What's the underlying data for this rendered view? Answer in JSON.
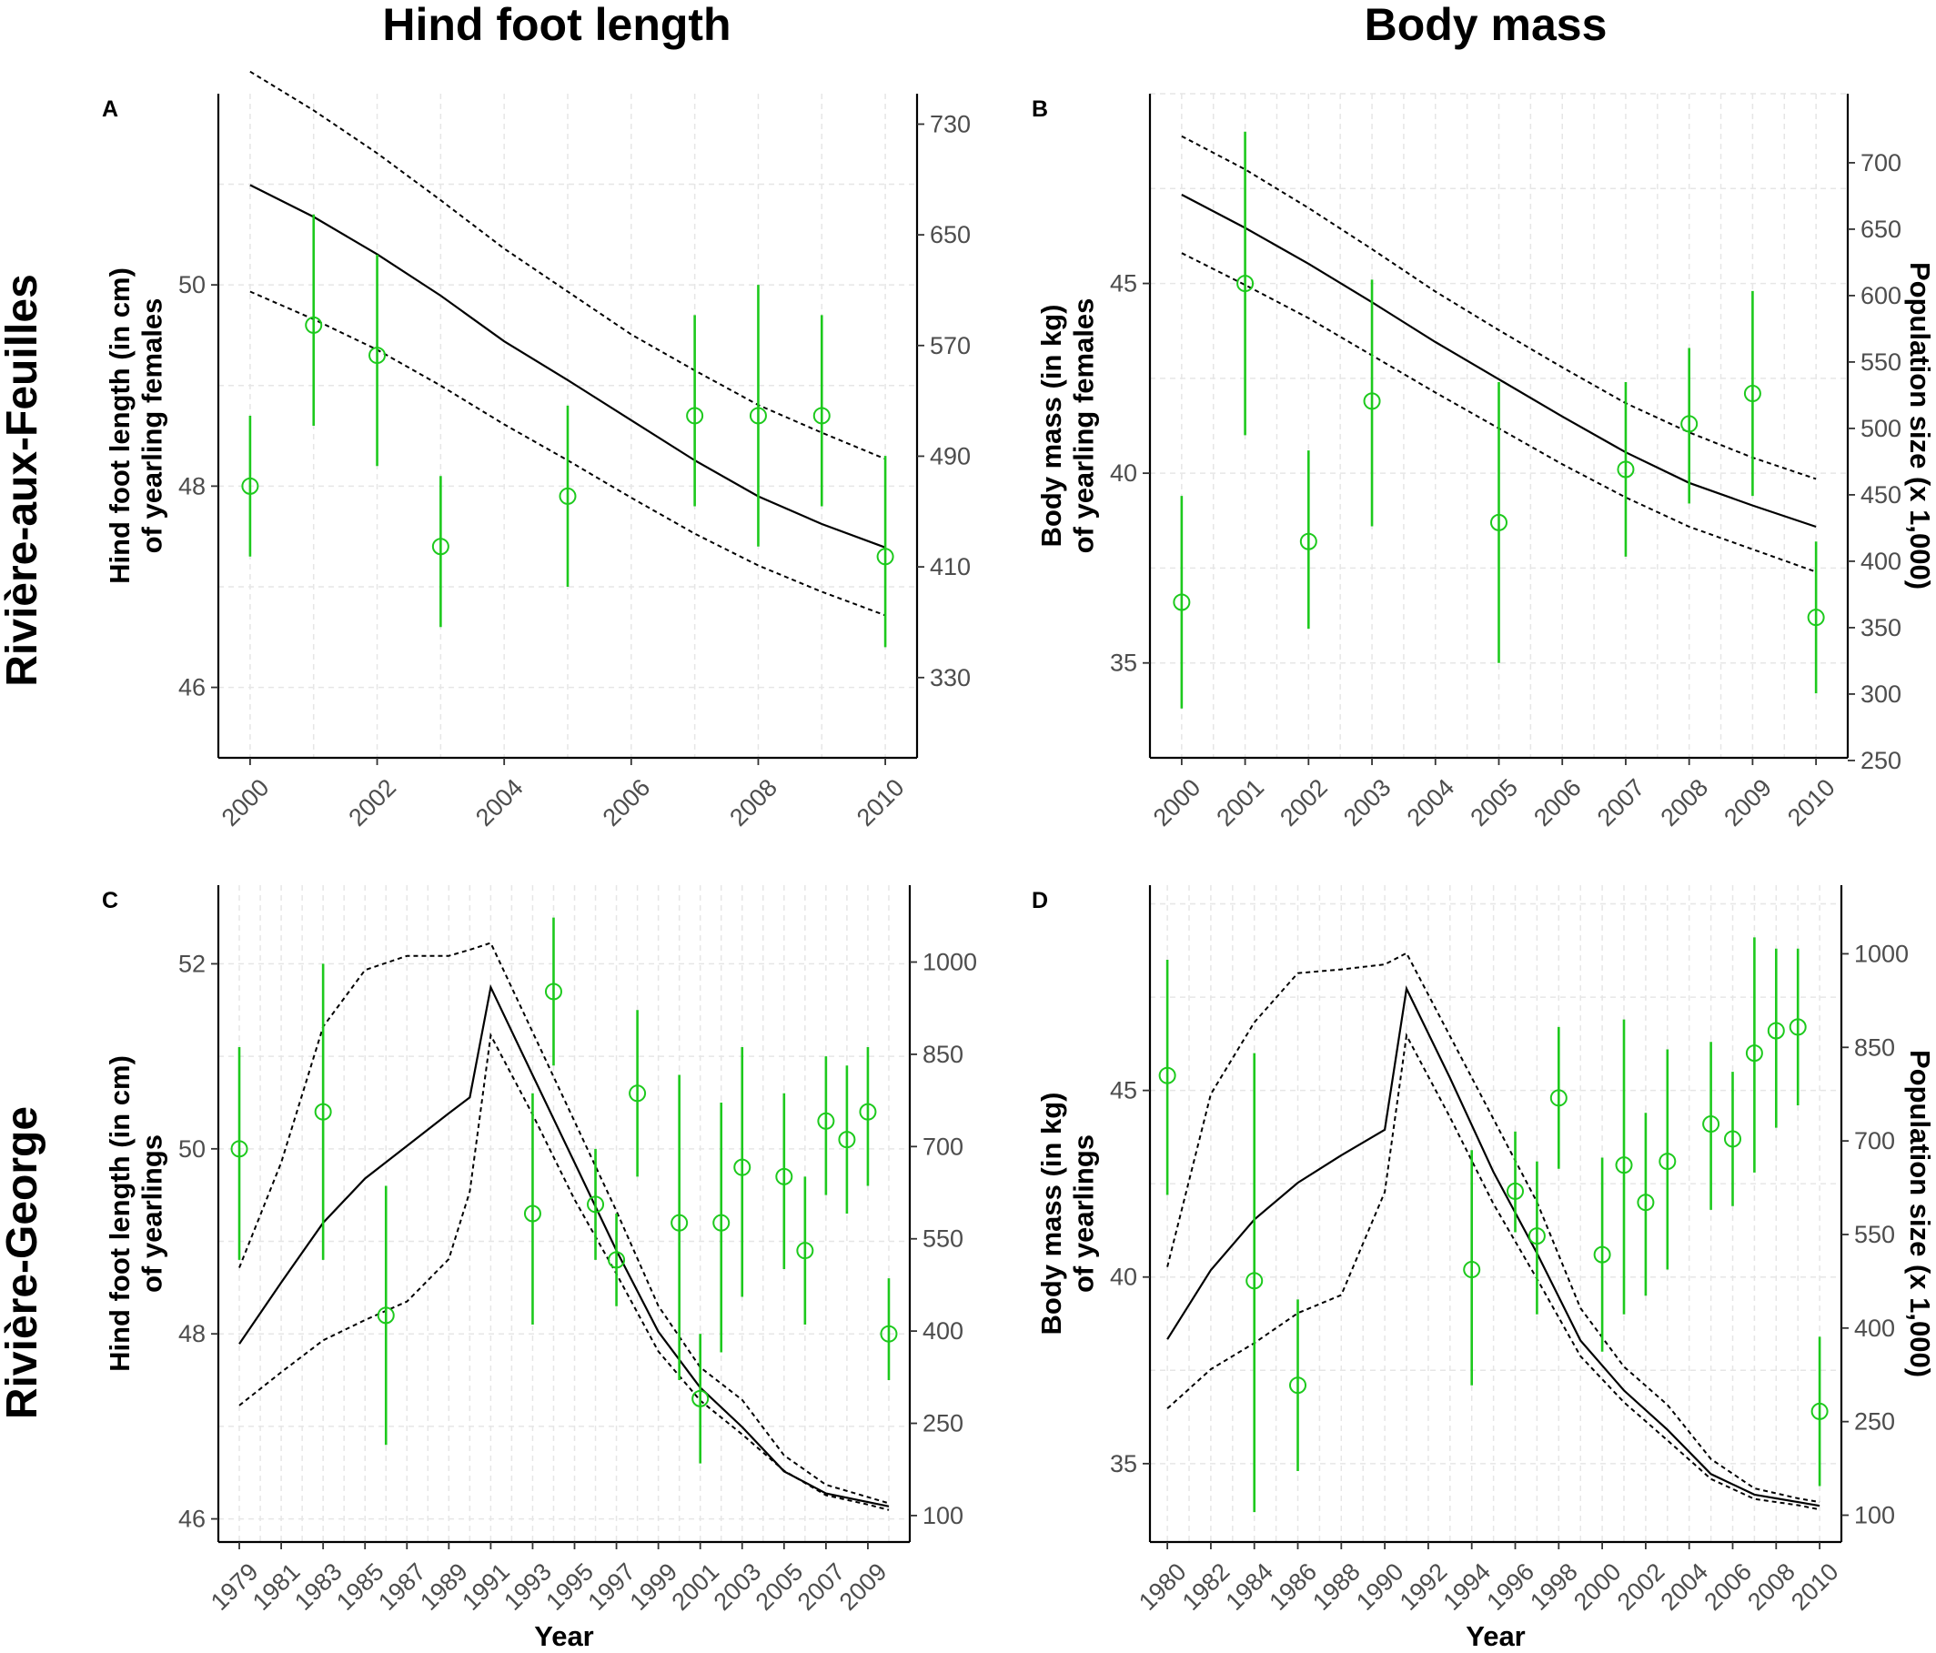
{
  "column_titles": [
    "Hind foot length",
    "Body mass"
  ],
  "row_titles": [
    "Rivière-aux-Feuilles",
    "Rivière-George"
  ],
  "colors": {
    "observed": "#1dc91d",
    "population": "#000000",
    "ci": "#000000"
  },
  "chart_data": [
    {
      "panel": "A",
      "type": "scatter",
      "ylabel": [
        "Hind foot length (in cm)",
        "of yearling females"
      ],
      "y2label": "",
      "xlabel": "",
      "xlim": [
        1999.5,
        2010.5
      ],
      "ylim": [
        45.3,
        51.9
      ],
      "y2lim": [
        272,
        752
      ],
      "xticks": [
        2000,
        2002,
        2004,
        2006,
        2008,
        2010
      ],
      "yticks": [
        46,
        48,
        50
      ],
      "y2ticks": [
        330,
        410,
        490,
        570,
        650,
        730
      ],
      "observed": [
        {
          "x": 2000,
          "y": 48.0,
          "lo": 47.3,
          "hi": 48.7
        },
        {
          "x": 2001,
          "y": 49.6,
          "lo": 48.6,
          "hi": 50.7
        },
        {
          "x": 2002,
          "y": 49.3,
          "lo": 48.2,
          "hi": 50.3
        },
        {
          "x": 2003,
          "y": 47.4,
          "lo": 46.6,
          "hi": 48.1
        },
        {
          "x": 2005,
          "y": 47.9,
          "lo": 47.0,
          "hi": 48.8
        },
        {
          "x": 2007,
          "y": 48.7,
          "lo": 47.8,
          "hi": 49.7
        },
        {
          "x": 2008,
          "y": 48.7,
          "lo": 47.4,
          "hi": 50.0
        },
        {
          "x": 2009,
          "y": 48.7,
          "lo": 47.8,
          "hi": 49.7
        },
        {
          "x": 2010,
          "y": 47.3,
          "lo": 46.4,
          "hi": 48.3
        }
      ],
      "population": {
        "x": [
          2000,
          2001,
          2002,
          2003,
          2004,
          2005,
          2006,
          2007,
          2008,
          2009,
          2010
        ],
        "estimate": [
          686,
          663,
          636,
          606,
          573,
          545,
          516,
          487,
          461,
          441,
          424
        ],
        "lower": [
          609,
          589,
          567,
          541,
          513,
          487,
          460,
          434,
          411,
          392,
          375
        ],
        "upper": [
          768,
          740,
          709,
          675,
          640,
          609,
          578,
          552,
          527,
          507,
          488
        ]
      }
    },
    {
      "panel": "B",
      "type": "scatter",
      "ylabel": [
        "Body mass (in kg)",
        "of yearling females"
      ],
      "y2label": "Population size (x 1,000)",
      "xlabel": "",
      "xlim": [
        1999.5,
        2010.5
      ],
      "ylim": [
        32.5,
        50.0
      ],
      "y2lim": [
        252,
        752
      ],
      "xticks": [
        2000,
        2001,
        2002,
        2003,
        2004,
        2005,
        2006,
        2007,
        2008,
        2009,
        2010
      ],
      "yticks": [
        35,
        40,
        45
      ],
      "y2ticks": [
        250,
        300,
        350,
        400,
        450,
        500,
        550,
        600,
        650,
        700
      ],
      "observed": [
        {
          "x": 2000,
          "y": 36.6,
          "lo": 33.8,
          "hi": 39.4
        },
        {
          "x": 2001,
          "y": 45.0,
          "lo": 41.0,
          "hi": 49.0
        },
        {
          "x": 2002,
          "y": 38.2,
          "lo": 35.9,
          "hi": 40.6
        },
        {
          "x": 2003,
          "y": 41.9,
          "lo": 38.6,
          "hi": 45.1
        },
        {
          "x": 2005,
          "y": 38.7,
          "lo": 35.0,
          "hi": 42.4
        },
        {
          "x": 2007,
          "y": 40.1,
          "lo": 37.8,
          "hi": 42.4
        },
        {
          "x": 2008,
          "y": 41.3,
          "lo": 39.2,
          "hi": 43.3
        },
        {
          "x": 2009,
          "y": 42.1,
          "lo": 39.4,
          "hi": 44.8
        },
        {
          "x": 2010,
          "y": 36.2,
          "lo": 34.2,
          "hi": 38.2
        }
      ],
      "population": {
        "x": [
          2000,
          2001,
          2002,
          2003,
          2004,
          2005,
          2006,
          2007,
          2008,
          2009,
          2010
        ],
        "estimate": [
          676,
          651,
          624,
          595,
          565,
          537,
          509,
          482,
          459,
          442,
          426
        ],
        "lower": [
          632,
          608,
          583,
          555,
          527,
          500,
          473,
          448,
          426,
          409,
          392
        ],
        "upper": [
          720,
          695,
          666,
          635,
          603,
          574,
          546,
          519,
          497,
          478,
          462
        ]
      }
    },
    {
      "panel": "C",
      "type": "scatter",
      "ylabel": [
        "Hind foot length (in cm)",
        "of yearlings"
      ],
      "y2label": "",
      "xlabel": "Year",
      "xlim": [
        1978.0,
        2011.0
      ],
      "ylim": [
        45.75,
        52.85
      ],
      "y2lim": [
        57,
        1125
      ],
      "xticks": [
        1979,
        1981,
        1983,
        1985,
        1987,
        1989,
        1991,
        1993,
        1995,
        1997,
        1999,
        2001,
        2003,
        2005,
        2007,
        2009
      ],
      "yticks": [
        46,
        48,
        50,
        52
      ],
      "y2ticks": [
        100,
        250,
        400,
        550,
        700,
        850,
        1000
      ],
      "observed": [
        {
          "x": 1979,
          "y": 50.0,
          "lo": 48.8,
          "hi": 51.1
        },
        {
          "x": 1983,
          "y": 50.4,
          "lo": 48.8,
          "hi": 52.0
        },
        {
          "x": 1986,
          "y": 48.2,
          "lo": 46.8,
          "hi": 49.6
        },
        {
          "x": 1993,
          "y": 49.3,
          "lo": 48.1,
          "hi": 50.6
        },
        {
          "x": 1994,
          "y": 51.7,
          "lo": 50.9,
          "hi": 52.5
        },
        {
          "x": 1996,
          "y": 49.4,
          "lo": 48.8,
          "hi": 50.0
        },
        {
          "x": 1997,
          "y": 48.8,
          "lo": 48.3,
          "hi": 49.3
        },
        {
          "x": 1998,
          "y": 50.6,
          "lo": 49.7,
          "hi": 51.5
        },
        {
          "x": 2000,
          "y": 49.2,
          "lo": 47.5,
          "hi": 50.8
        },
        {
          "x": 2001,
          "y": 47.3,
          "lo": 46.6,
          "hi": 48.0
        },
        {
          "x": 2002,
          "y": 49.2,
          "lo": 47.8,
          "hi": 50.5
        },
        {
          "x": 2003,
          "y": 49.8,
          "lo": 48.4,
          "hi": 51.1
        },
        {
          "x": 2005,
          "y": 49.7,
          "lo": 48.7,
          "hi": 50.6
        },
        {
          "x": 2006,
          "y": 48.9,
          "lo": 48.1,
          "hi": 49.7
        },
        {
          "x": 2007,
          "y": 50.3,
          "lo": 49.5,
          "hi": 51.0
        },
        {
          "x": 2008,
          "y": 50.1,
          "lo": 49.3,
          "hi": 50.9
        },
        {
          "x": 2009,
          "y": 50.4,
          "lo": 49.6,
          "hi": 51.1
        },
        {
          "x": 2010,
          "y": 48.0,
          "lo": 47.5,
          "hi": 48.6
        }
      ],
      "population": {
        "x": [
          1979,
          1981,
          1983,
          1985,
          1987,
          1989,
          1990,
          1991,
          1993,
          1995,
          1997,
          1999,
          2001,
          2003,
          2005,
          2007,
          2009,
          2010
        ],
        "estimate": [
          379,
          479,
          576,
          648,
          701,
          754,
          780,
          959,
          816,
          674,
          531,
          399,
          308,
          244,
          172,
          136,
          122,
          115
        ],
        "lower": [
          279,
          333,
          385,
          418,
          448,
          517,
          627,
          881,
          752,
          614,
          493,
          367,
          287,
          232,
          173,
          133,
          118,
          109
        ],
        "upper": [
          503,
          674,
          895,
          987,
          1010,
          1010,
          1020,
          1031,
          886,
          741,
          595,
          441,
          341,
          288,
          198,
          150,
          130,
          120
        ]
      }
    },
    {
      "panel": "D",
      "type": "scatter",
      "ylabel": [
        "Body mass (in kg)",
        "of yearlings"
      ],
      "y2label": "Population size (x 1,000)",
      "xlabel": "Year",
      "xlim": [
        1979.2,
        2011.0
      ],
      "ylim": [
        32.9,
        50.5
      ],
      "y2lim": [
        57,
        1110
      ],
      "xticks": [
        1980,
        1982,
        1984,
        1986,
        1988,
        1990,
        1992,
        1994,
        1996,
        1998,
        2000,
        2002,
        2004,
        2006,
        2008,
        2010
      ],
      "yticks": [
        35,
        40,
        45
      ],
      "y2ticks": [
        100,
        250,
        400,
        550,
        700,
        850,
        1000
      ],
      "observed": [
        {
          "x": 1980,
          "y": 45.4,
          "lo": 42.2,
          "hi": 48.5
        },
        {
          "x": 1984,
          "y": 39.9,
          "lo": 33.7,
          "hi": 46.0
        },
        {
          "x": 1986,
          "y": 37.1,
          "lo": 34.8,
          "hi": 39.4
        },
        {
          "x": 1994,
          "y": 40.2,
          "lo": 37.1,
          "hi": 43.4
        },
        {
          "x": 1996,
          "y": 42.3,
          "lo": 41.2,
          "hi": 43.9
        },
        {
          "x": 1997,
          "y": 41.1,
          "lo": 39.0,
          "hi": 43.1
        },
        {
          "x": 1998,
          "y": 44.8,
          "lo": 42.9,
          "hi": 46.7
        },
        {
          "x": 2000,
          "y": 40.6,
          "lo": 38.0,
          "hi": 43.2
        },
        {
          "x": 2001,
          "y": 43.0,
          "lo": 39.0,
          "hi": 46.9
        },
        {
          "x": 2002,
          "y": 42.0,
          "lo": 39.5,
          "hi": 44.4
        },
        {
          "x": 2003,
          "y": 43.1,
          "lo": 40.2,
          "hi": 46.1
        },
        {
          "x": 2005,
          "y": 44.1,
          "lo": 41.8,
          "hi": 46.3
        },
        {
          "x": 2006,
          "y": 43.7,
          "lo": 41.9,
          "hi": 45.5
        },
        {
          "x": 2007,
          "y": 46.0,
          "lo": 42.8,
          "hi": 49.1
        },
        {
          "x": 2008,
          "y": 46.6,
          "lo": 44.0,
          "hi": 48.8
        },
        {
          "x": 2009,
          "y": 46.7,
          "lo": 44.6,
          "hi": 48.8
        },
        {
          "x": 2010,
          "y": 36.4,
          "lo": 34.4,
          "hi": 38.4
        }
      ],
      "population": {
        "x": [
          1980,
          1982,
          1984,
          1986,
          1988,
          1990,
          1991,
          1993,
          1995,
          1997,
          1999,
          2001,
          2003,
          2005,
          2007,
          2009,
          2010
        ],
        "estimate": [
          382,
          493,
          574,
          633,
          677,
          718,
          944,
          801,
          650,
          520,
          380,
          300,
          237,
          166,
          133,
          121,
          115
        ],
        "lower": [
          271,
          334,
          376,
          424,
          453,
          618,
          869,
          738,
          599,
          479,
          355,
          281,
          220,
          158,
          126,
          116,
          109
        ],
        "upper": [
          498,
          775,
          890,
          969,
          975,
          983,
          1001,
          868,
          735,
          602,
          432,
          338,
          277,
          190,
          143,
          127,
          121
        ]
      }
    }
  ]
}
